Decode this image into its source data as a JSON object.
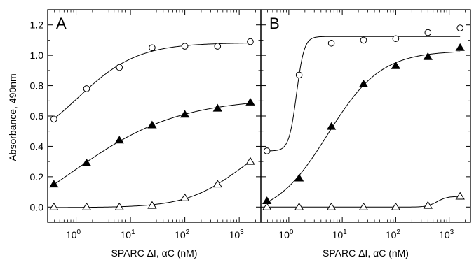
{
  "chart_data": [
    {
      "type": "scatter",
      "panel_label": "A",
      "xlabel": "SPARC ΔI, αC (nM)",
      "ylabel": "Absorbance, 490nm",
      "xscale": "log",
      "xlim": [
        0.3,
        2500
      ],
      "ylim": [
        -0.1,
        1.3
      ],
      "x_ticks": [
        1,
        10,
        100,
        1000
      ],
      "x_tick_labels": [
        {
          "base": "10",
          "exp": "0"
        },
        {
          "base": "10",
          "exp": "1"
        },
        {
          "base": "10",
          "exp": "2"
        },
        {
          "base": "10",
          "exp": "3"
        }
      ],
      "y_ticks": [
        0.0,
        0.2,
        0.4,
        0.6,
        0.8,
        1.0,
        1.2
      ],
      "y_tick_labels": [
        "0.0",
        "0.2",
        "0.4",
        "0.6",
        "0.8",
        "1.0",
        "1.2"
      ],
      "grid": false,
      "series": [
        {
          "marker": "open-circle",
          "x": [
            0.39,
            1.56,
            6.25,
            25,
            100,
            400,
            1600
          ],
          "y": [
            0.58,
            0.78,
            0.92,
            1.05,
            1.06,
            1.06,
            1.09
          ]
        },
        {
          "marker": "filled-triangle",
          "x": [
            0.39,
            1.56,
            6.25,
            25,
            100,
            400,
            1600
          ],
          "y": [
            0.15,
            0.29,
            0.44,
            0.54,
            0.61,
            0.65,
            0.69
          ]
        },
        {
          "marker": "open-triangle",
          "x": [
            0.39,
            1.56,
            6.25,
            25,
            100,
            400,
            1600
          ],
          "y": [
            0.0,
            0.0,
            0.0,
            0.01,
            0.06,
            0.15,
            0.3
          ]
        }
      ]
    },
    {
      "type": "scatter",
      "panel_label": "B",
      "xlabel": "SPARC ΔI, αC (nM)",
      "xscale": "log",
      "xlim": [
        0.3,
        2500
      ],
      "ylim": [
        -0.1,
        1.3
      ],
      "x_ticks": [
        1,
        10,
        100,
        1000
      ],
      "x_tick_labels": [
        {
          "base": "10",
          "exp": "0"
        },
        {
          "base": "10",
          "exp": "1"
        },
        {
          "base": "10",
          "exp": "2"
        },
        {
          "base": "10",
          "exp": "3"
        }
      ],
      "y_ticks": [
        0.0,
        0.2,
        0.4,
        0.6,
        0.8,
        1.0,
        1.2
      ],
      "grid": false,
      "series": [
        {
          "marker": "open-circle",
          "x": [
            0.39,
            1.56,
            6.25,
            25,
            100,
            400,
            1600
          ],
          "y": [
            0.37,
            0.87,
            1.08,
            1.1,
            1.11,
            1.15,
            1.18
          ]
        },
        {
          "marker": "filled-triangle",
          "x": [
            0.39,
            1.56,
            6.25,
            25,
            100,
            400,
            1600
          ],
          "y": [
            0.04,
            0.19,
            0.53,
            0.81,
            0.93,
            0.99,
            1.05
          ]
        },
        {
          "marker": "open-triangle",
          "x": [
            0.39,
            1.56,
            6.25,
            25,
            100,
            400,
            1600
          ],
          "y": [
            0.0,
            0.0,
            0.0,
            0.0,
            0.0,
            0.01,
            0.07
          ]
        }
      ]
    }
  ]
}
